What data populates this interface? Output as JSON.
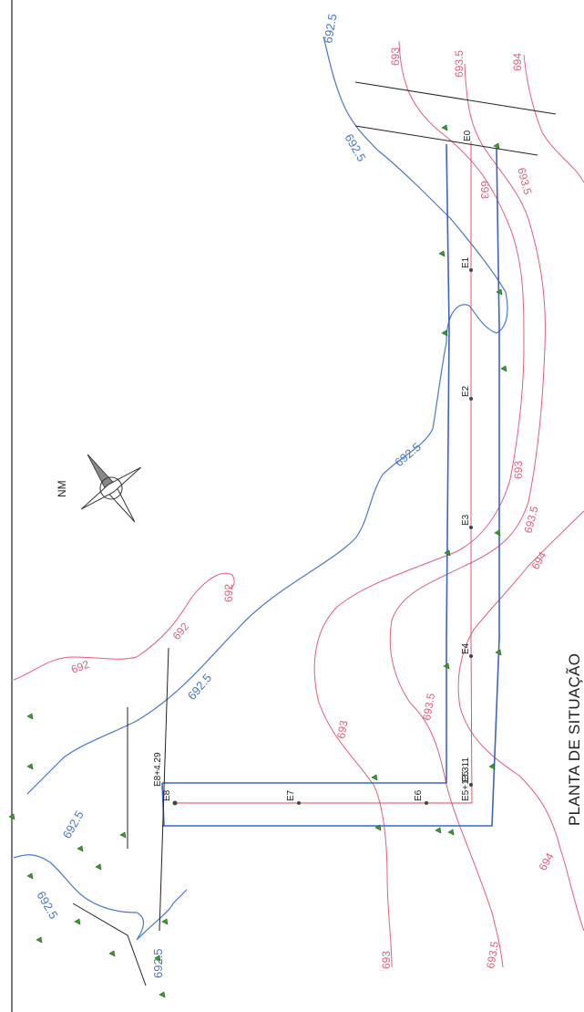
{
  "title": "PLANTA DE SITUAÇÃO",
  "north_label": "NM",
  "colors": {
    "blue_contour": "#4a78c8",
    "pink_contour": "#e0607a",
    "road": "#3d63c4",
    "axis": "#d44a5e",
    "ink": "#222222",
    "tree": "#3d9a2f"
  },
  "stations": {
    "e0": "E0",
    "e1": "E1",
    "e2": "E2",
    "e3": "E3",
    "e4": "E4",
    "e5": "E5",
    "e5b": "E5+13.311",
    "e6": "E6",
    "e7": "E7",
    "e8": "E8",
    "e8b": "E8+4.29"
  },
  "contours": {
    "b_top": "692.5",
    "b_e0": "692.5",
    "b_mid": "692.5",
    "b_lower": "692.5",
    "b_left": "692.5",
    "b_bl1": "692.5",
    "b_bl2": "692.5",
    "p_top693": "693",
    "p_top6935": "693.5",
    "p_top694": "694",
    "p_e0_693": "693",
    "p_e0_6935": "693.5",
    "p_mid693": "693",
    "p_mid6935": "693.5",
    "p_mid694": "694",
    "p_692a": "692",
    "p_692b": "692",
    "p_692c": "692",
    "p_l693": "693",
    "p_l6935": "693.5",
    "p_b693": "693",
    "p_b6935": "693.5",
    "p_b694": "694"
  }
}
